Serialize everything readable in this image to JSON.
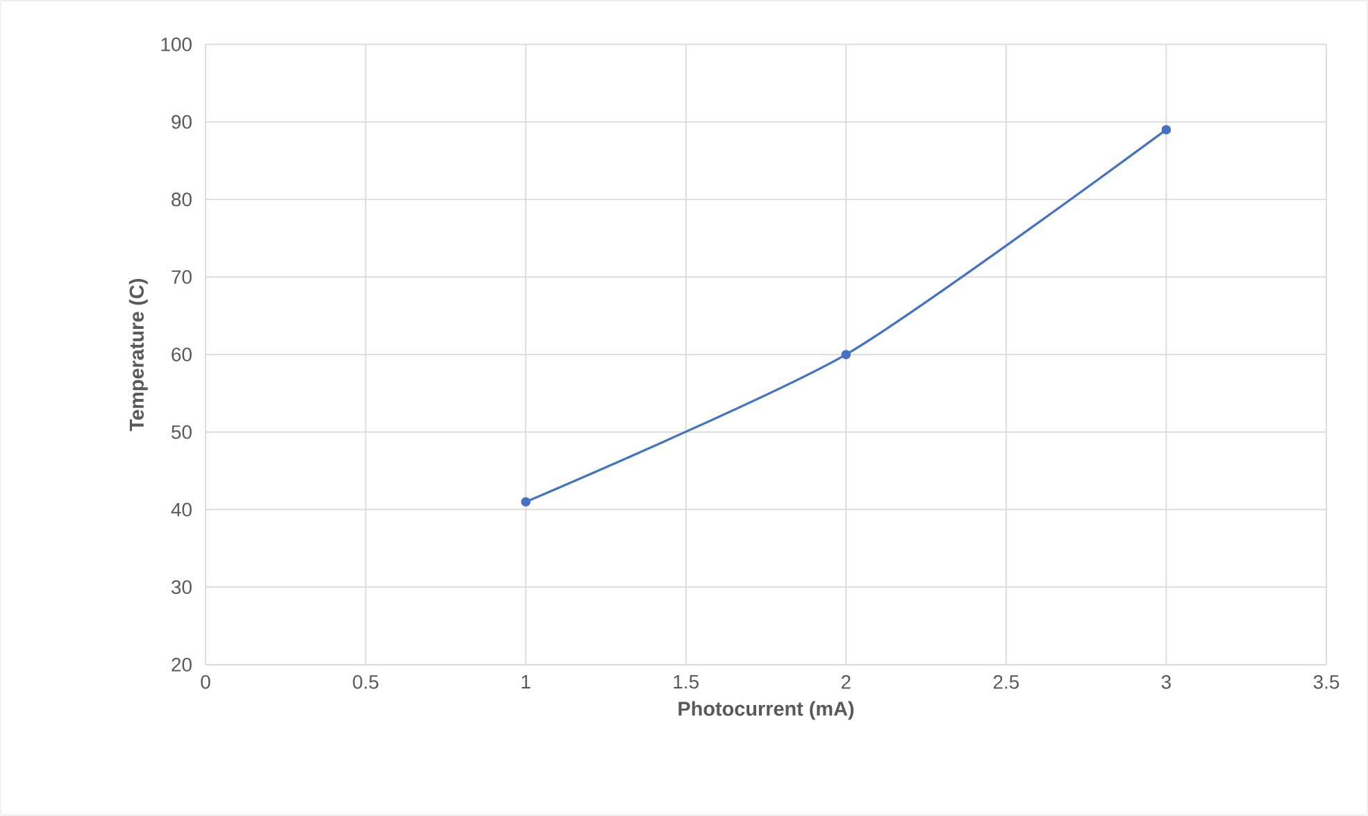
{
  "chart_data": {
    "type": "line",
    "xlabel": "Photocurrent (mA)",
    "ylabel": "Temperature (C)",
    "x": [
      1,
      2,
      3
    ],
    "series": [
      {
        "color": "#4472c4",
        "values": [
          41,
          60,
          89
        ]
      }
    ],
    "xlim": [
      0,
      3.5
    ],
    "ylim": [
      20,
      100
    ],
    "xticks": [
      0,
      0.5,
      1,
      1.5,
      2,
      2.5,
      3,
      3.5
    ],
    "yticks": [
      20,
      30,
      40,
      50,
      60,
      70,
      80,
      90,
      100
    ],
    "grid": true,
    "marker": "circle",
    "line_style": "solid"
  }
}
